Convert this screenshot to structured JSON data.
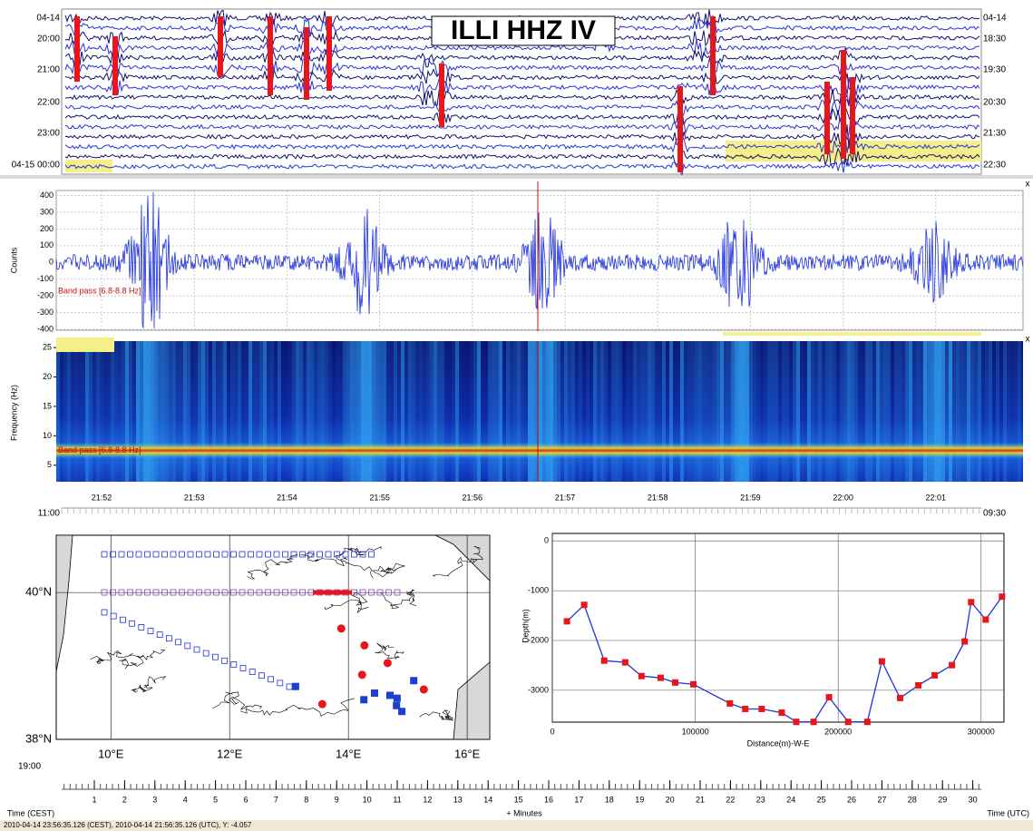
{
  "helicorder": {
    "title": "ILLI HHZ IV",
    "left_times": [
      "04-14",
      "20:00",
      "21:00",
      "22:00",
      "23:00",
      "04-15 00:00"
    ],
    "right_times": [
      "04-14",
      "18:30",
      "19:30",
      "20:30",
      "21:30",
      "22:30"
    ]
  },
  "waveform": {
    "y_label": "Counts",
    "yticks": [
      400,
      300,
      200,
      100,
      0,
      -100,
      -200,
      -300,
      -400
    ],
    "ylim": [
      -400,
      430
    ],
    "filter": "Band pass [6.8-8.8 Hz]",
    "close": "x"
  },
  "spectrogram": {
    "y_label": "Frequency (Hz)",
    "yticks": [
      5,
      10,
      15,
      20,
      25
    ],
    "ylim": [
      2.2,
      26.1
    ],
    "filter": "Band pass [6.8-8.8 Hz]",
    "close": "x",
    "xticks": [
      "21:52",
      "21:53",
      "21:54",
      "21:55",
      "21:56",
      "21:57",
      "21:58",
      "21:59",
      "22:00",
      "22:01"
    ]
  },
  "timeline": {
    "top_left": "11:00",
    "top_right": "09:30",
    "left_time": "19:00",
    "minute_ticks": [
      1,
      2,
      3,
      4,
      5,
      6,
      7,
      8,
      9,
      10,
      11,
      12,
      13,
      14,
      15,
      16,
      17,
      18,
      19,
      20,
      21,
      22,
      23,
      24,
      25,
      26,
      27,
      28,
      29,
      30
    ],
    "left_label": "Time (CEST)",
    "center_label": "+ Minutes",
    "right_label": "Time (UTC)"
  },
  "map": {
    "xlim": [
      9.08,
      16.38
    ],
    "ylim": [
      38,
      40.78
    ],
    "xticks": [
      {
        "value": 10,
        "label": "10°E"
      },
      {
        "value": 12,
        "label": "12°E"
      },
      {
        "value": 14,
        "label": "14°E"
      },
      {
        "value": 16,
        "label": "16°E"
      }
    ],
    "yticks": [
      {
        "value": 40,
        "label": "40°N"
      },
      {
        "value": 38,
        "label": "38°N"
      }
    ],
    "markers": [
      {
        "color": "#e8161b",
        "shape": "circle",
        "x": [
          13.88,
          14.27,
          14.66,
          14.23,
          15.27,
          13.56
        ],
        "values": [
          39.51,
          39.28,
          39.04,
          38.88,
          38.68,
          38.48
        ]
      },
      {
        "color": "#1f3fd0",
        "shape": "square",
        "x": [
          13.11,
          14.26,
          14.44,
          14.7,
          14.81,
          14.9,
          15.1,
          14.82
        ],
        "values": [
          38.72,
          38.54,
          38.63,
          38.6,
          38.46,
          38.38,
          38.8,
          38.56
        ]
      }
    ]
  },
  "profile": {
    "x_label": "Distance(m)-W-E",
    "y_label": "Depth(m)",
    "xlim": [
      0,
      316000
    ],
    "ylim": [
      -3640,
      150
    ],
    "xticks": [
      0,
      100000,
      200000,
      300000
    ],
    "yticks": [
      0,
      -1000,
      -2000,
      -3000
    ],
    "line_color": "#2233dd",
    "marker_color": "#e8161b",
    "x": [
      10200,
      22300,
      36300,
      51000,
      62400,
      75800,
      86000,
      98700,
      124200,
      135000,
      146500,
      160500,
      170700,
      182800,
      193600,
      207000,
      220400,
      230600,
      243300,
      256100,
      267500,
      279600,
      288500,
      293000,
      303200,
      314600
    ],
    "values": [
      -1615,
      -1285,
      -2405,
      -2440,
      -2715,
      -2750,
      -2845,
      -2880,
      -3265,
      -3375,
      -3375,
      -3450,
      -3635,
      -3635,
      -3140,
      -3635,
      -3635,
      -2420,
      -3155,
      -2900,
      -2700,
      -2495,
      -2020,
      -1230,
      -1580,
      -1120
    ]
  },
  "status": "2010-04-14 23:56:35.126 (CEST), 2010-04-14 21:56:35.126 (UTC), Y: -4.057"
}
